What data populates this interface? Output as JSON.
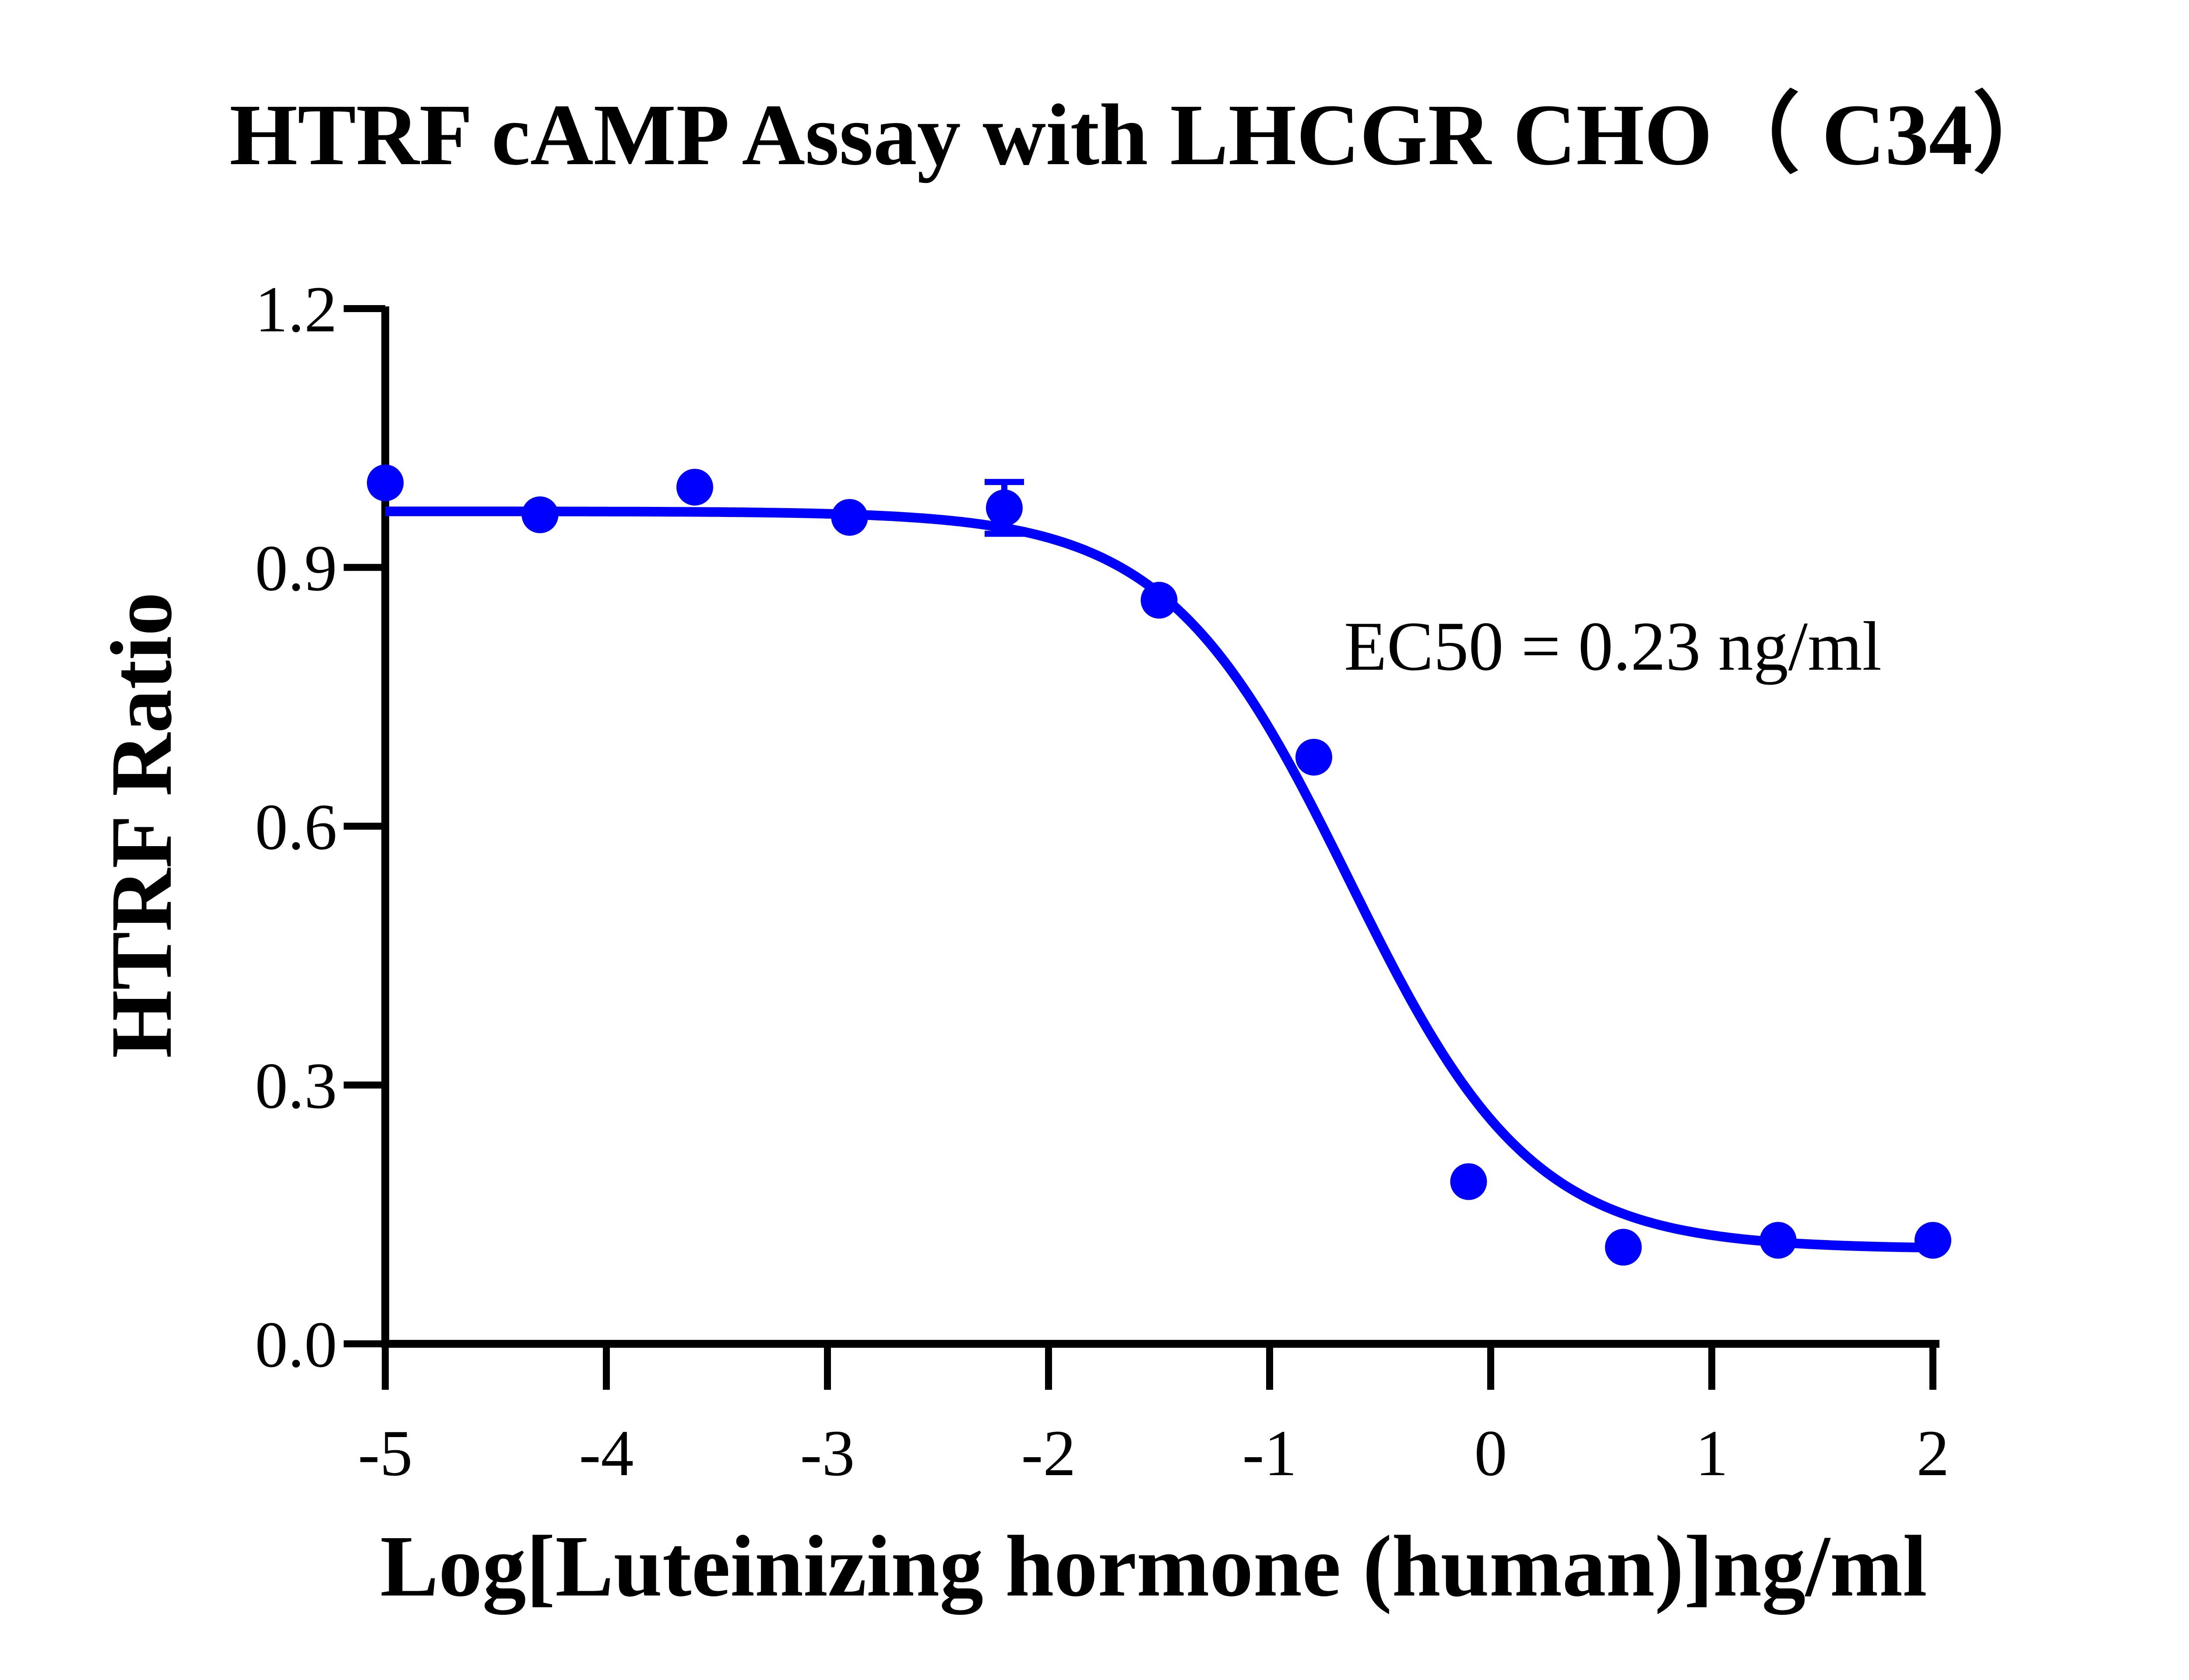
{
  "chart_data": {
    "type": "scatter",
    "title": "HTRF cAMP Assay with LHCGR CHO（ C34）",
    "xlabel": "Log[Luteinizing hormone (human)]ng/ml",
    "ylabel": "HTRF Ratio",
    "xlim": [
      -5,
      2
    ],
    "ylim": [
      0,
      1.2
    ],
    "x_ticks": [
      -5,
      -4,
      -3,
      -2,
      -1,
      0,
      1,
      2
    ],
    "x_tick_labels": [
      "-5",
      "-4",
      "-3",
      "-2",
      "-1",
      "0",
      "1",
      "2"
    ],
    "y_ticks": [
      0,
      0.3,
      0.6,
      0.9,
      1.2
    ],
    "y_tick_labels": [
      "0.0",
      "0.3",
      "0.6",
      "0.9",
      "1.2"
    ],
    "grid": false,
    "color": "#0000ff",
    "annotation": "EC50 = 0.23 ng/ml",
    "series": [
      {
        "x": [
          -5.0,
          -4.3,
          -3.6,
          -2.9,
          -2.2,
          -1.5,
          -0.8,
          -0.1,
          0.6,
          1.3,
          2.0
        ],
        "y": [
          0.998,
          0.961,
          0.993,
          0.958,
          0.969,
          0.862,
          0.68,
          0.188,
          0.112,
          0.12,
          0.12
        ],
        "error": [
          0,
          0,
          0,
          0,
          0.03,
          0,
          0,
          0,
          0,
          0,
          0
        ]
      }
    ],
    "fit": {
      "type": "4PL",
      "top": 0.965,
      "bottom": 0.11,
      "log_ec50": -0.64,
      "hill": 1.05
    }
  }
}
